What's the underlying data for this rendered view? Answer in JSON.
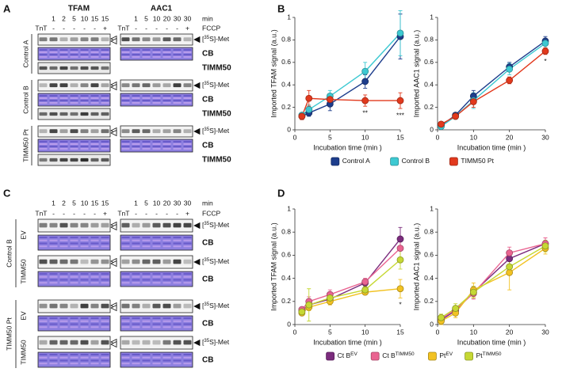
{
  "panel_letters": {
    "a": "A",
    "b": "B",
    "c": "C",
    "d": "D"
  },
  "blots": {
    "proteins": [
      "TFAM",
      "AAC1"
    ],
    "tfam_times": [
      "1",
      "2",
      "5",
      "10",
      "15",
      "15"
    ],
    "aac1_times": [
      "1",
      "5",
      "10",
      "20",
      "30",
      "30"
    ],
    "time_unit": "min",
    "tnt": "TnT",
    "fccp_signs": [
      "-",
      "-",
      "-",
      "-",
      "-",
      "+"
    ],
    "fccp": "FCCP",
    "met_label": {
      "open": "[",
      "sup": "35",
      "close": "S]-Met"
    },
    "cb": "CB",
    "timm50": "TIMM50",
    "panel_a_groups": [
      "Control A",
      "Control B",
      "TIMM50 Pt"
    ],
    "panel_c_groups": [
      {
        "name": "Control B",
        "subgroups": [
          "EV",
          "TIMM50"
        ]
      },
      {
        "name": "TIMM50 Pt",
        "subgroups": [
          "EV",
          "TIMM50"
        ]
      }
    ]
  },
  "chart_data": [
    {
      "type": "line",
      "y_label": "Imported TFAM signal (a.u.)",
      "x_label": "Incubation time (min )",
      "x": [
        1,
        2,
        5,
        10,
        15
      ],
      "xlim": [
        0,
        15
      ],
      "xticks": [
        0,
        5,
        10,
        15
      ],
      "ylim": [
        0,
        1
      ],
      "yticks": [
        0,
        0.2,
        0.4,
        0.6,
        0.8,
        1
      ],
      "legend": "bottom",
      "series": [
        {
          "name": "Control A",
          "color": "#1d3d8c",
          "values": [
            0.12,
            0.15,
            0.23,
            0.43,
            0.83
          ],
          "errors": [
            0.02,
            0.03,
            0.06,
            0.06,
            0.2
          ]
        },
        {
          "name": "Control B",
          "color": "#3dc9d2",
          "values": [
            0.13,
            0.18,
            0.3,
            0.52,
            0.86
          ],
          "errors": [
            0.02,
            0.04,
            0.05,
            0.08,
            0.2
          ]
        },
        {
          "name": "TIMM50 Pt",
          "color": "#e2391d",
          "values": [
            0.12,
            0.28,
            0.27,
            0.26,
            0.26
          ],
          "errors": [
            0.03,
            0.07,
            0.05,
            0.05,
            0.07
          ]
        }
      ],
      "annotations": [
        {
          "x": 10,
          "text": "**"
        },
        {
          "x": 15,
          "text": "***"
        }
      ]
    },
    {
      "type": "line",
      "y_label": "Imported AAC1 signal (a.u.)",
      "x_label": "Incubation time (min )",
      "x": [
        1,
        5,
        10,
        20,
        30
      ],
      "xlim": [
        0,
        30
      ],
      "xticks": [
        0,
        10,
        20,
        30
      ],
      "ylim": [
        0,
        1
      ],
      "yticks": [
        0,
        0.2,
        0.4,
        0.6,
        0.8,
        1
      ],
      "series": [
        {
          "color": "#1d3d8c",
          "values": [
            0.04,
            0.13,
            0.3,
            0.56,
            0.79
          ],
          "errors": [
            0.02,
            0.02,
            0.05,
            0.04,
            0.04
          ]
        },
        {
          "color": "#3dc9d2",
          "values": [
            0.03,
            0.12,
            0.26,
            0.54,
            0.77
          ],
          "errors": [
            0.02,
            0.02,
            0.07,
            0.05,
            0.04
          ]
        },
        {
          "color": "#e2391d",
          "values": [
            0.05,
            0.12,
            0.25,
            0.44,
            0.7
          ],
          "errors": [
            0.02,
            0.02,
            0.05,
            0.03,
            0.03
          ]
        }
      ],
      "annotations": [
        {
          "x": 30,
          "text": "*"
        }
      ]
    },
    {
      "type": "line",
      "y_label": "Imported TFAM signal (a.u.)",
      "x_label": "Incubation time (min )",
      "x": [
        1,
        2,
        5,
        10,
        15
      ],
      "xlim": [
        0,
        15
      ],
      "xticks": [
        0,
        5,
        10,
        15
      ],
      "ylim": [
        0,
        1
      ],
      "yticks": [
        0,
        0.2,
        0.4,
        0.6,
        0.8,
        1
      ],
      "legend": "bottom",
      "series": [
        {
          "name": "Ct B",
          "superscript": "EV",
          "color": "#7b2c7d",
          "values": [
            0.12,
            0.17,
            0.22,
            0.36,
            0.74
          ],
          "errors": [
            0.02,
            0.04,
            0.03,
            0.03,
            0.1
          ]
        },
        {
          "name": "Ct B",
          "superscript": "TIMM50",
          "color": "#ea6491",
          "values": [
            0.13,
            0.2,
            0.26,
            0.37,
            0.66
          ],
          "errors": [
            0.02,
            0.04,
            0.04,
            0.03,
            0.08
          ]
        },
        {
          "name": "Pt",
          "superscript": "EV",
          "color": "#f2c222",
          "values": [
            0.1,
            0.15,
            0.2,
            0.28,
            0.31
          ],
          "errors": [
            0.02,
            0.03,
            0.03,
            0.02,
            0.08
          ]
        },
        {
          "name": "Pt",
          "superscript": "TIMM50",
          "color": "#c6d834",
          "values": [
            0.11,
            0.17,
            0.23,
            0.3,
            0.56
          ],
          "errors": [
            0.02,
            0.14,
            0.05,
            0.03,
            0.08
          ]
        }
      ],
      "annotations": [
        {
          "x": 15,
          "text": "*"
        }
      ]
    },
    {
      "type": "line",
      "y_label": "Imported AAC1 signal (a.u.)",
      "x_label": "Incubation time (min )",
      "x": [
        1,
        5,
        10,
        20,
        30
      ],
      "xlim": [
        0,
        30
      ],
      "xticks": [
        0,
        10,
        20,
        30
      ],
      "ylim": [
        0,
        1
      ],
      "yticks": [
        0,
        0.2,
        0.4,
        0.6,
        0.8,
        1
      ],
      "series": [
        {
          "color": "#7b2c7d",
          "values": [
            0.04,
            0.12,
            0.28,
            0.57,
            0.7
          ],
          "errors": [
            0.03,
            0.03,
            0.05,
            0.05,
            0.05
          ]
        },
        {
          "color": "#ea6491",
          "values": [
            0.05,
            0.13,
            0.27,
            0.62,
            0.7
          ],
          "errors": [
            0.03,
            0.03,
            0.05,
            0.05,
            0.05
          ]
        },
        {
          "color": "#f2c222",
          "values": [
            0.03,
            0.1,
            0.3,
            0.45,
            0.66
          ],
          "errors": [
            0.03,
            0.04,
            0.06,
            0.15,
            0.05
          ]
        },
        {
          "color": "#c6d834",
          "values": [
            0.06,
            0.14,
            0.28,
            0.5,
            0.68
          ],
          "errors": [
            0.03,
            0.04,
            0.05,
            0.06,
            0.05
          ]
        }
      ]
    }
  ]
}
